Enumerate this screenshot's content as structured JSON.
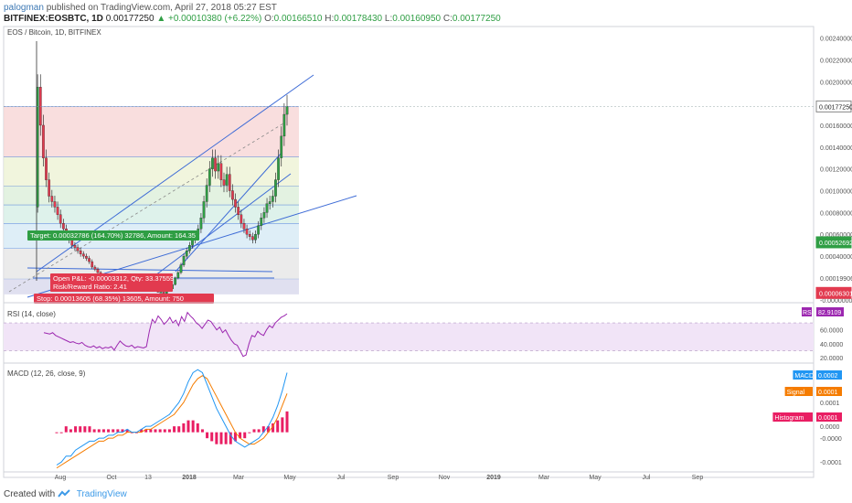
{
  "header": {
    "user": "palogman",
    "published": "published on TradingView.com, April 27, 2018 05:27 EST",
    "symbol": "BITFINEX:EOSBTC, 1D",
    "last": "0.00177250",
    "change": "▲ +0.00010380 (+6.22%)",
    "o_label": "O:",
    "o": "0.00166510",
    "h_label": "H:",
    "h": "0.00178430",
    "l_label": "L:",
    "l": "0.00160950",
    "c_label": "C:",
    "c": "0.00177250"
  },
  "footer": {
    "created_with": "Created with",
    "brand": "TradingView"
  },
  "colors": {
    "up": "#2f9e44",
    "down": "#e23a4f",
    "fib_line": "#3a6fd8",
    "trend": "#3d6bd6",
    "rsi": "#9c27b0",
    "macd": "#2196f3",
    "signal": "#f57c00",
    "hist": "#e91e63"
  },
  "chart_data": [
    {
      "type": "candlestick",
      "title": "EOS / Bitcoin, 1D, BITFINEX",
      "x_tick_labels": [
        "Aug",
        "Oct",
        "13",
        "2018",
        "Mar",
        "May",
        "Jul",
        "Sep",
        "Nov",
        "2019",
        "Mar",
        "May",
        "Jul",
        "Sep"
      ],
      "y_tick_labels": [
        "0.00240000",
        "0.00220000",
        "0.00200000",
        "0.00160000",
        "0.00140000",
        "0.00120000",
        "0.00100000",
        "0.00080000",
        "0.00060000",
        "0.00040000",
        "0.00019906",
        "-0.00000000"
      ],
      "ylim": [
        -1e-05,
        0.00248
      ],
      "price_labels": [
        {
          "text": "0.00177250",
          "value": 0.0017725,
          "color": "#ffffff"
        },
        {
          "text": "0.00052692",
          "value": 0.00052692,
          "color": "#2f9e44"
        },
        {
          "text": "0.00006301",
          "value": 6.301e-05,
          "color": "#e23a4f"
        }
      ],
      "close_series": [
        0.00085,
        0.00195,
        0.0016,
        0.0013,
        0.0011,
        0.00095,
        0.0009,
        0.00085,
        0.00078,
        0.0007,
        0.00065,
        0.0006,
        0.00055,
        0.0005,
        0.00048,
        0.00045,
        0.00042,
        0.0004,
        0.00038,
        0.00035,
        0.0003,
        0.00028,
        0.00025,
        0.00022,
        0.0002,
        0.00018,
        0.00016,
        0.00014,
        0.00012,
        0.00011,
        0.0001,
        9e-05,
        8e-05,
        9e-05,
        0.0001,
        0.00012,
        0.00015,
        0.00014,
        0.00013,
        0.00012,
        0.0001,
        9e-05,
        8e-05,
        7e-05,
        7e-05,
        6e-05,
        8e-05,
        0.0001,
        0.00014,
        0.0002,
        0.00025,
        0.00032,
        0.0004,
        0.00045,
        0.0005,
        0.00055,
        0.0006,
        0.00065,
        0.00075,
        0.0009,
        0.00105,
        0.0012,
        0.0013,
        0.00118,
        0.00125,
        0.0011,
        0.00105,
        0.00115,
        0.001,
        0.00092,
        0.00085,
        0.00078,
        0.0007,
        0.00065,
        0.0006,
        0.00058,
        0.00055,
        0.0006,
        0.00068,
        0.00075,
        0.0008,
        0.00088,
        0.0009,
        0.00095,
        0.0011,
        0.0013,
        0.0015,
        0.0017,
        0.0017725
      ],
      "fib_levels": [
        0.00177,
        0.00131,
        0.00104,
        0.00087,
        0.0007,
        0.00047,
        0.00019
      ],
      "annotations": {
        "target": "Target: 0.00032786 (164.70%) 32786, Amount: 164.35",
        "open_pl": "Open P&L: -0.00003312, Qty: 33.37559",
        "risk_reward": "Risk/Reward Ratio: 2.41",
        "stop": "Stop: 0.00013605 (68.35%) 13605, Amount: 750"
      }
    },
    {
      "type": "line",
      "title": "RSI (14, close)",
      "y_tick_labels": [
        "60.0000",
        "40.0000",
        "20.0000"
      ],
      "ylim": [
        15,
        95
      ],
      "value_label": "RSI",
      "value_text": "82.9109",
      "values": [
        56,
        55,
        54,
        56,
        52,
        50,
        48,
        46,
        44,
        42,
        43,
        41,
        40,
        42,
        38,
        36,
        35,
        37,
        34,
        36,
        33,
        35,
        34,
        36,
        31,
        38,
        44,
        40,
        37,
        36,
        38,
        34,
        36,
        35,
        34,
        36,
        58,
        75,
        70,
        80,
        75,
        68,
        72,
        78,
        70,
        74,
        66,
        79,
        72,
        85,
        80,
        76,
        70,
        67,
        62,
        68,
        74,
        72,
        66,
        60,
        64,
        56,
        60,
        52,
        45,
        40,
        38,
        30,
        22,
        24,
        40,
        52,
        50,
        58,
        54,
        52,
        60,
        66,
        63,
        70,
        74,
        78,
        80,
        83
      ]
    },
    {
      "type": "line",
      "title": "MACD (12, 26, close, 9)",
      "y_tick_labels": [
        "0.0001",
        "0.0000",
        "-0.0000",
        "-0.0001"
      ],
      "ylim": [
        -0.00013,
        0.00022
      ],
      "series": [
        {
          "name": "MACD",
          "value_text": "0.0002",
          "values": [
            -0.00011,
            -0.0001,
            -8e-05,
            -8e-05,
            -6e-05,
            -5e-05,
            -4e-05,
            -3e-05,
            -3e-05,
            -2e-05,
            -2e-05,
            -1e-05,
            -1e-05,
            0.0,
            0.0,
            1e-05,
            0.0,
            0.0,
            1e-05,
            2e-05,
            2e-05,
            3e-05,
            4e-05,
            5e-05,
            6e-05,
            8e-05,
            0.0001,
            0.00013,
            0.00017,
            0.0002,
            0.00021,
            0.0002,
            0.00016,
            0.00012,
            8e-05,
            5e-05,
            2e-05,
            -1e-05,
            -3e-05,
            -4e-05,
            -5e-05,
            -4e-05,
            -3e-05,
            -2e-05,
            0.0,
            2e-05,
            5e-05,
            9e-05,
            0.00014,
            0.0002
          ]
        },
        {
          "name": "Signal",
          "value_text": "0.0001",
          "values": [
            -0.00012,
            -0.00011,
            -0.0001,
            -9e-05,
            -8e-05,
            -7e-05,
            -6e-05,
            -5e-05,
            -4e-05,
            -3e-05,
            -3e-05,
            -2e-05,
            -2e-05,
            -1e-05,
            -1e-05,
            0.0,
            0.0,
            0.0,
            0.0,
            1e-05,
            1e-05,
            2e-05,
            3e-05,
            4e-05,
            5e-05,
            6e-05,
            8e-05,
            0.0001,
            0.00013,
            0.00016,
            0.00018,
            0.00019,
            0.00018,
            0.00015,
            0.00012,
            9e-05,
            6e-05,
            3e-05,
            0.0,
            -2e-05,
            -3e-05,
            -4e-05,
            -4e-05,
            -3e-05,
            -2e-05,
            0.0,
            2e-05,
            5e-05,
            9e-05,
            0.00013
          ]
        },
        {
          "name": "Histogram",
          "value_text": "0.0001",
          "values": [
            0.0,
            0.0,
            2e-05,
            1e-05,
            2e-05,
            2e-05,
            2e-05,
            2e-05,
            1e-05,
            1e-05,
            1e-05,
            1e-05,
            1e-05,
            1e-05,
            1e-05,
            1e-05,
            0.0,
            0.0,
            1e-05,
            1e-05,
            1e-05,
            1e-05,
            1e-05,
            1e-05,
            1e-05,
            2e-05,
            2e-05,
            3e-05,
            4e-05,
            4e-05,
            3e-05,
            1e-05,
            -2e-05,
            -3e-05,
            -4e-05,
            -4e-05,
            -4e-05,
            -4e-05,
            -3e-05,
            -2e-05,
            -2e-05,
            0.0,
            1e-05,
            1e-05,
            2e-05,
            2e-05,
            3e-05,
            4e-05,
            5e-05,
            7e-05
          ]
        }
      ]
    }
  ]
}
